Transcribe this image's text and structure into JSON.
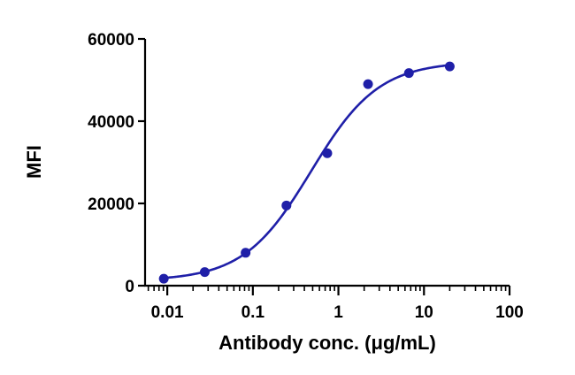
{
  "chart_data": {
    "type": "scatter",
    "xlabel": "Antibody conc. (μg/mL)",
    "ylabel": "MFI",
    "x_scale": "log",
    "xlim": [
      0.0055,
      100
    ],
    "ylim": [
      0,
      60000
    ],
    "x_ticks": [
      0.01,
      0.1,
      1,
      10,
      100
    ],
    "x_tick_labels": [
      "0.01",
      "0.1",
      "1",
      "10",
      "100"
    ],
    "y_ticks": [
      0,
      20000,
      40000,
      60000
    ],
    "y_tick_labels": [
      "0",
      "20000",
      "40000",
      "60000"
    ],
    "grid": false,
    "series": [
      {
        "color": "#1f1fa8",
        "x": [
          0.0091,
          0.0274,
          0.0823,
          0.247,
          0.741,
          2.22,
          6.67,
          20
        ],
        "y": [
          1700,
          3300,
          8000,
          19500,
          32200,
          49000,
          51700,
          53300
        ],
        "fit": {
          "model": "4PL",
          "bottom": 1200,
          "top": 54500,
          "ec50": 0.48,
          "hill": 1.1
        }
      }
    ]
  }
}
